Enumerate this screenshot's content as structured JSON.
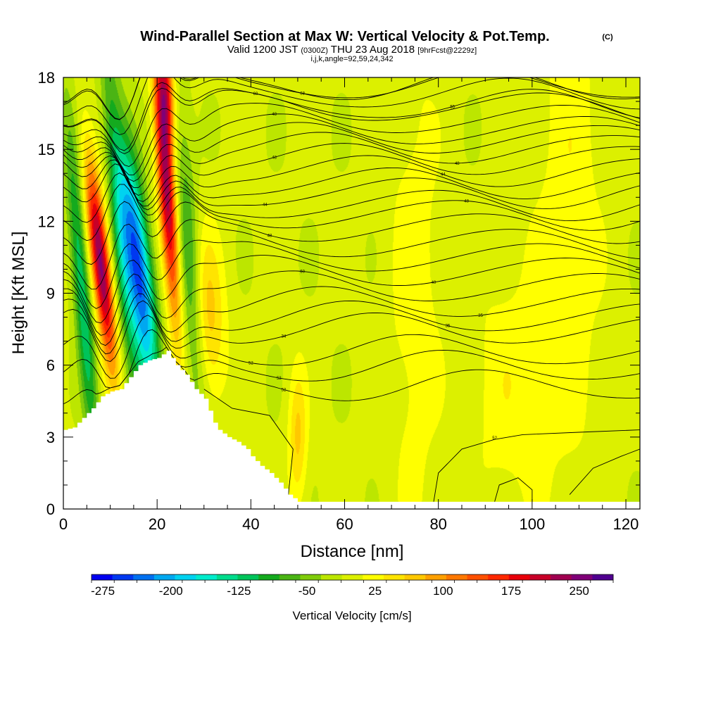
{
  "header": {
    "title": "Wind-Parallel Section at Max W: Vertical Velocity & Pot.Temp.",
    "copyright": "(C)",
    "valid_prefix": "Valid 1200 JST",
    "valid_utc": "(0300Z)",
    "valid_date": "THU 23 Aug 2018",
    "forecast": "[9hrFcst@2229z]",
    "indices": "i,j,k,angle=92,59,24,342"
  },
  "chart_data": {
    "type": "heatmap",
    "xlabel": "Distance [nm]",
    "ylabel": "Height [Kft MSL]",
    "xlim": [
      0,
      123
    ],
    "ylim": [
      0,
      18
    ],
    "x_ticks": [
      "0",
      "20",
      "40",
      "60",
      "80",
      "100",
      "120"
    ],
    "y_ticks": [
      "0",
      "3",
      "6",
      "9",
      "12",
      "15",
      "18"
    ],
    "grid": false,
    "colorbar": {
      "label": "Vertical Velocity [cm/s]",
      "min": -287.5,
      "max": 287.5,
      "step": 25,
      "tick_values": [
        -275,
        -200,
        -125,
        -50,
        25,
        100,
        175,
        250
      ],
      "tick_labels": [
        "-275",
        "-200",
        "-125",
        "-50",
        "25",
        "100",
        "175",
        "250"
      ],
      "colors": [
        "#0000f0",
        "#0038f0",
        "#0070f0",
        "#00a8f0",
        "#00d2f0",
        "#00eccc",
        "#00dc8c",
        "#00c45a",
        "#14aa1e",
        "#4ab414",
        "#80cc0a",
        "#bce600",
        "#dcf000",
        "#ffff00",
        "#ffe400",
        "#ffc800",
        "#ffa000",
        "#ff7800",
        "#ff5000",
        "#ff2800",
        "#e8000a",
        "#c80028",
        "#a00050",
        "#800078",
        "#500090"
      ]
    },
    "fields": {
      "shaded": "Vertical Velocity [cm/s]",
      "contour": "Potential Temperature"
    },
    "terrain": [
      [
        0,
        3.3
      ],
      [
        2,
        3.4
      ],
      [
        4,
        3.8
      ],
      [
        6,
        4.2
      ],
      [
        8,
        4.7
      ],
      [
        10,
        4.9
      ],
      [
        12,
        5.0
      ],
      [
        14,
        5.5
      ],
      [
        16,
        6.0
      ],
      [
        18,
        6.2
      ],
      [
        20,
        6.3
      ],
      [
        22,
        6.6
      ],
      [
        23,
        6.3
      ],
      [
        24,
        6.0
      ],
      [
        26,
        5.6
      ],
      [
        28,
        5.0
      ],
      [
        30,
        4.6
      ],
      [
        31,
        4.1
      ],
      [
        32,
        3.6
      ],
      [
        33,
        3.3
      ],
      [
        35,
        3.0
      ],
      [
        37,
        2.8
      ],
      [
        39,
        2.5
      ],
      [
        40,
        2.2
      ],
      [
        41,
        2.0
      ],
      [
        42,
        1.8
      ],
      [
        44,
        1.5
      ],
      [
        46,
        1.1
      ],
      [
        48,
        0.6
      ],
      [
        50,
        0.3
      ],
      [
        52,
        0.3
      ],
      [
        123,
        0.3
      ]
    ],
    "velocity_features": [
      {
        "x": 8,
        "y": 10.2,
        "sx": 1.4,
        "sy": 3.0,
        "lean": -0.55,
        "value": 280
      },
      {
        "x": 16,
        "y": 10.0,
        "sx": 2.0,
        "sy": 3.6,
        "lean": -0.55,
        "value": -270
      },
      {
        "x": 22,
        "y": 13.5,
        "sx": 1.3,
        "sy": 4.0,
        "lean": -0.35,
        "value": 260
      },
      {
        "x": 22,
        "y": 17.5,
        "sx": 1.2,
        "sy": 1.5,
        "lean": -0.2,
        "value": 150
      },
      {
        "x": 12,
        "y": 12.0,
        "sx": 1.4,
        "sy": 6.0,
        "lean": -0.4,
        "value": -90
      },
      {
        "x": 4,
        "y": 9.0,
        "sx": 1.3,
        "sy": 5.0,
        "lean": -0.4,
        "value": -130
      },
      {
        "x": 27,
        "y": 10.0,
        "sx": 1.6,
        "sy": 4.5,
        "lean": -0.3,
        "value": -90
      },
      {
        "x": 31,
        "y": 8.0,
        "sx": 2.5,
        "sy": 2.5,
        "lean": -0.2,
        "value": 80
      },
      {
        "x": 50,
        "y": 3.0,
        "sx": 1.4,
        "sy": 2.0,
        "lean": 0,
        "value": 75
      },
      {
        "x": 75,
        "y": 9.0,
        "sx": 4.0,
        "sy": 8.0,
        "lean": 0,
        "value": 35
      },
      {
        "x": 95,
        "y": 5.0,
        "sx": 6.0,
        "sy": 4.0,
        "lean": 0,
        "value": 35
      },
      {
        "x": 108,
        "y": 12.0,
        "sx": 5.0,
        "sy": 8.0,
        "lean": 0,
        "value": 38
      }
    ],
    "contour_levels": [
      {
        "label": "52",
        "h": 5.15,
        "label_x": 47
      },
      {
        "label": "52",
        "h": 5.95,
        "label_x": 46
      },
      {
        "label": "52",
        "h": 6.6,
        "label_x": 40
      },
      {
        "label": "34",
        "h": 7.5,
        "label_x": 47
      },
      {
        "label": "35",
        "h": 8.0,
        "label_x": 82
      },
      {
        "label": "35",
        "h": 8.6,
        "label_x": 89
      },
      {
        "label": "60",
        "h": 9.25,
        "label_x": 51
      },
      {
        "label": "40",
        "h": 9.9,
        "label_x": 79
      },
      {
        "label": "",
        "h": 10.5,
        "label_x": 0
      },
      {
        "label": "",
        "h": 11.1,
        "label_x": 0
      },
      {
        "label": "48",
        "h": 11.75,
        "label_x": 44
      },
      {
        "label": "48",
        "h": 12.3,
        "label_x": 86
      },
      {
        "label": "",
        "h": 12.7,
        "label_x": 0
      },
      {
        "label": "44",
        "h": 13.2,
        "label_x": 43
      },
      {
        "label": "",
        "h": 13.6,
        "label_x": 0
      },
      {
        "label": "44",
        "h": 14.1,
        "label_x": 81
      },
      {
        "label": "48",
        "h": 14.6,
        "label_x": 45
      },
      {
        "label": "48",
        "h": 15.05,
        "label_x": 84
      },
      {
        "label": "",
        "h": 15.45,
        "label_x": 0
      },
      {
        "label": "48",
        "h": 15.8,
        "label_x": 45
      },
      {
        "label": "",
        "h": 16.25,
        "label_x": 0
      },
      {
        "label": "60",
        "h": 16.75,
        "label_x": 41
      },
      {
        "label": "55",
        "h": 16.85,
        "label_x": 83
      },
      {
        "label": "",
        "h": 17.3,
        "label_x": 0
      },
      {
        "label": "68",
        "h": 17.7,
        "label_x": 51
      },
      {
        "label": "58",
        "h": 17.7,
        "label_x": 85
      }
    ],
    "lower_contours": [
      {
        "label": "",
        "points": [
          [
            30,
            5.0
          ],
          [
            36,
            4.2
          ],
          [
            44,
            3.9
          ],
          [
            49,
            2.5
          ],
          [
            48,
            0.6
          ]
        ]
      },
      {
        "label": "52",
        "points": [
          [
            79,
            0.3
          ],
          [
            80,
            1.5
          ],
          [
            85,
            2.5
          ],
          [
            92,
            2.9
          ],
          [
            98,
            3.1
          ],
          [
            110,
            3.2
          ],
          [
            123,
            3.3
          ]
        ]
      },
      {
        "label": "",
        "points": [
          [
            92,
            0.3
          ],
          [
            93,
            1.0
          ],
          [
            97,
            1.3
          ],
          [
            100,
            0.8
          ],
          [
            100,
            0.3
          ]
        ]
      },
      {
        "label": "",
        "points": [
          [
            108,
            0.6
          ],
          [
            113,
            1.7
          ],
          [
            119,
            2.2
          ],
          [
            123,
            2.5
          ]
        ]
      }
    ]
  }
}
